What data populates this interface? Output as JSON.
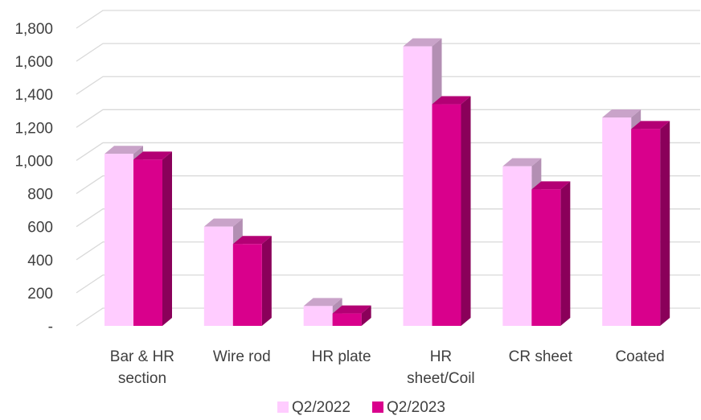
{
  "chart_data": {
    "type": "bar",
    "categories": [
      [
        "Bar & HR",
        "section"
      ],
      [
        "Wire rod"
      ],
      [
        "HR plate"
      ],
      [
        "HR",
        "sheet/Coil"
      ],
      [
        "CR sheet"
      ],
      [
        "Coated"
      ]
    ],
    "series": [
      {
        "name": "Q2/2022",
        "values": [
          1040,
          600,
          120,
          1690,
          965,
          1260
        ],
        "color": "#ffccff",
        "side_color": "#b38fb3",
        "top_color": "#c9a3c9"
      },
      {
        "name": "Q2/2023",
        "values": [
          1005,
          495,
          75,
          1340,
          825,
          1190
        ],
        "color": "#d9008c",
        "side_color": "#8a005a",
        "top_color": "#b30074"
      }
    ],
    "yticks": [
      "-",
      "200",
      "400",
      "600",
      "800",
      "1,000",
      "1,200",
      "1,400",
      "1,600",
      "1,800"
    ],
    "ylim": [
      0,
      1800
    ],
    "grid": true,
    "legend_position": "bottom",
    "title": "",
    "xlabel": "",
    "ylabel": ""
  }
}
